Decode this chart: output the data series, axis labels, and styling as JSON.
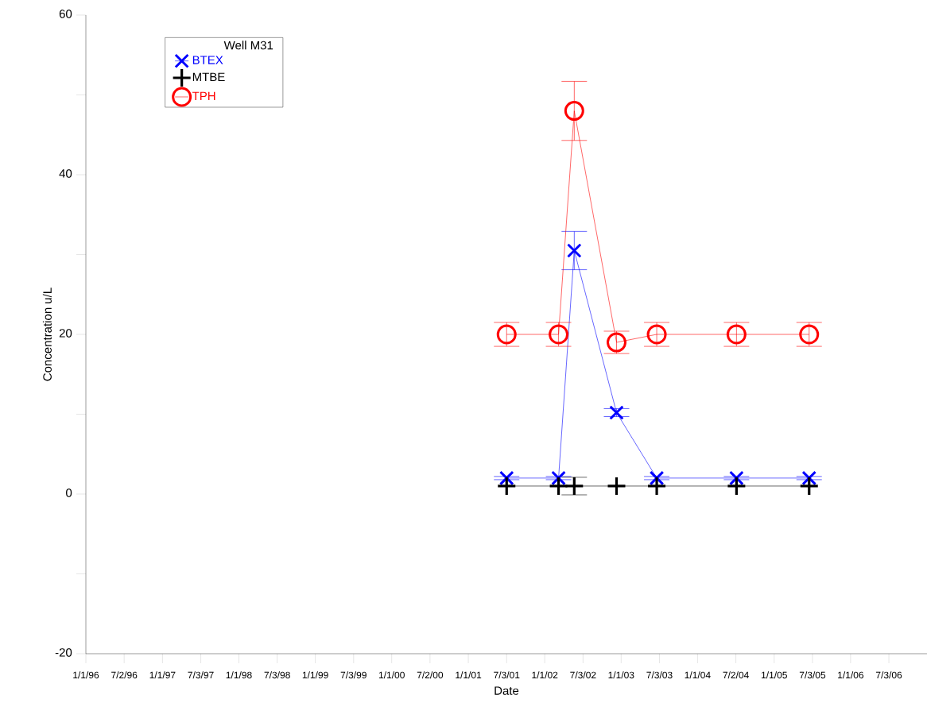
{
  "chart_data": {
    "type": "line",
    "xlabel": "Date",
    "ylabel": "Concentration u/L",
    "legend_title": "Well M31",
    "legend": "top left",
    "line_style": "solid",
    "x": [
      "2001-07-03",
      "2002-03-08",
      "2002-05-22",
      "2002-12-10",
      "2003-06-20",
      "2004-07-05",
      "2005-06-17"
    ],
    "series": [
      {
        "name": "BTEX",
        "color": "#0000ff",
        "marker": "x",
        "values": [
          2,
          2,
          30.5,
          10.2,
          2,
          2,
          2
        ],
        "errors": [
          0.2,
          0.2,
          2.4,
          0.5,
          0.2,
          0.2,
          0.2
        ]
      },
      {
        "name": "MTBE",
        "color": "#000000",
        "marker": "cross",
        "values": [
          1,
          1,
          1,
          1,
          1,
          1,
          1
        ],
        "errors": [
          null,
          null,
          1.1,
          null,
          null,
          null,
          null
        ]
      },
      {
        "name": "TPH",
        "color": "#ff0000",
        "marker": "circle",
        "values": [
          20,
          20,
          48,
          19,
          20,
          20,
          20
        ],
        "errors": [
          1.5,
          1.5,
          3.7,
          1.4,
          1.5,
          1.5,
          1.5
        ]
      }
    ],
    "xlim": [
      "1996-01-01",
      "2007-01-01"
    ],
    "xticks": [
      {
        "value": "1996-01-01",
        "label": "1/1/96"
      },
      {
        "value": "1996-07-02",
        "label": "7/2/96"
      },
      {
        "value": "1997-01-01",
        "label": "1/1/97"
      },
      {
        "value": "1997-07-03",
        "label": "7/3/97"
      },
      {
        "value": "1998-01-01",
        "label": "1/1/98"
      },
      {
        "value": "1998-07-03",
        "label": "7/3/98"
      },
      {
        "value": "1999-01-01",
        "label": "1/1/99"
      },
      {
        "value": "1999-07-03",
        "label": "7/3/99"
      },
      {
        "value": "2000-01-01",
        "label": "1/1/00"
      },
      {
        "value": "2000-07-02",
        "label": "7/2/00"
      },
      {
        "value": "2001-01-01",
        "label": "1/1/01"
      },
      {
        "value": "2001-07-03",
        "label": "7/3/01"
      },
      {
        "value": "2002-01-01",
        "label": "1/1/02"
      },
      {
        "value": "2002-07-03",
        "label": "7/3/02"
      },
      {
        "value": "2003-01-01",
        "label": "1/1/03"
      },
      {
        "value": "2003-07-03",
        "label": "7/3/03"
      },
      {
        "value": "2004-01-01",
        "label": "1/1/04"
      },
      {
        "value": "2004-07-02",
        "label": "7/2/04"
      },
      {
        "value": "2005-01-01",
        "label": "1/1/05"
      },
      {
        "value": "2005-07-03",
        "label": "7/3/05"
      },
      {
        "value": "2006-01-01",
        "label": "1/1/06"
      },
      {
        "value": "2006-07-03",
        "label": "7/3/06"
      }
    ],
    "ylim": [
      -20,
      60
    ],
    "yticks": [
      -20,
      {
        "value": -10,
        "label": null
      },
      0,
      {
        "value": 10,
        "label": null
      },
      20,
      {
        "value": 30,
        "label": null
      },
      40,
      {
        "value": 50,
        "label": null
      },
      60
    ],
    "grid": false
  }
}
